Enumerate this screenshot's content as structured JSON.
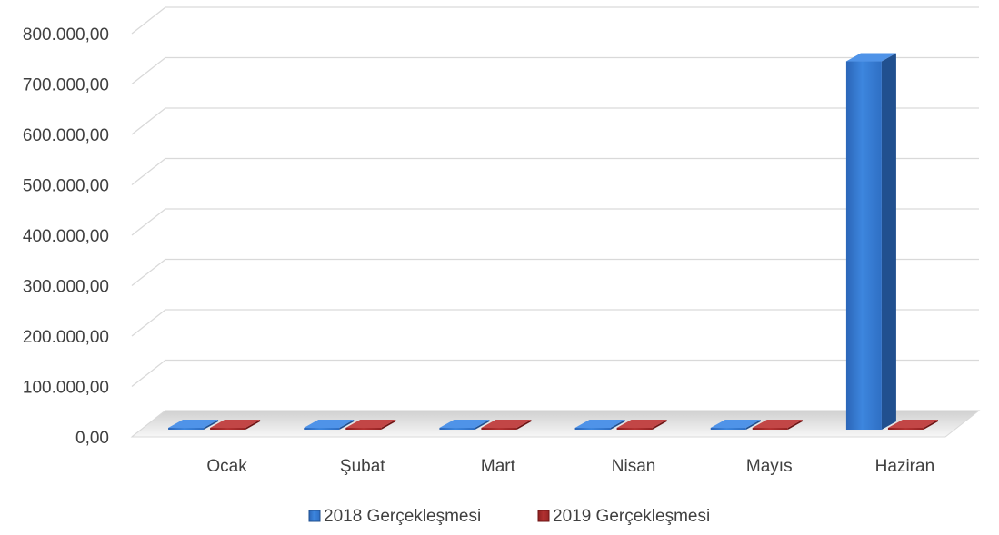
{
  "chart_data": {
    "type": "bar",
    "title": "",
    "xlabel": "",
    "ylabel": "",
    "categories": [
      "Ocak",
      "Şubat",
      "Mart",
      "Nisan",
      "Mayıs",
      "Haziran"
    ],
    "series": [
      {
        "name": "2018 Gerçekleşmesi",
        "values": [
          0,
          0,
          0,
          0,
          0,
          745000
        ],
        "color": "#2E75D6"
      },
      {
        "name": "2019 Gerçekleşmesi",
        "values": [
          0,
          0,
          0,
          0,
          0,
          0
        ],
        "color": "#A52A2A"
      }
    ],
    "ylim": [
      0,
      800000
    ],
    "yticks": [
      0,
      100000,
      200000,
      300000,
      400000,
      500000,
      600000,
      700000,
      800000
    ],
    "ytick_labels": [
      "0,00",
      "100.000,00",
      "200.000,00",
      "300.000,00",
      "400.000,00",
      "500.000,00",
      "600.000,00",
      "700.000,00",
      "800.000,00"
    ],
    "grid": true,
    "legend_position": "bottom",
    "style": "3d-bar"
  }
}
